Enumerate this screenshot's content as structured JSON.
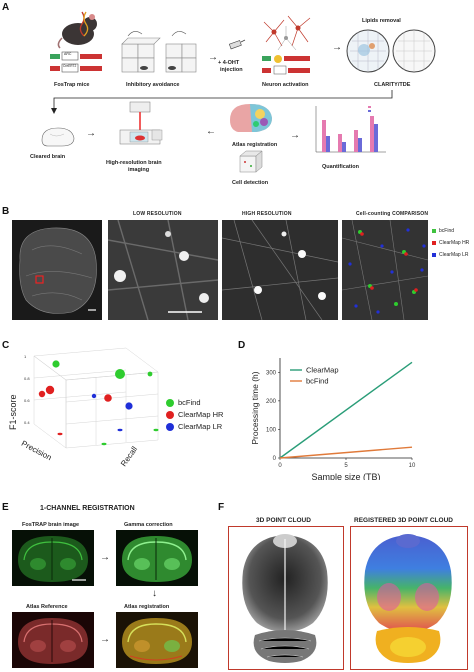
{
  "panelA": {
    "letter": "A",
    "fostrap": "FosTrap mice",
    "gene1": "ARC",
    "gene2": "CreERT2",
    "avoidance": "Inhibitory avoidance",
    "injection_line1": "+ 4-OHT",
    "injection_line2": "injection",
    "neuron": "Neuron activation",
    "lipids": "Lipids removal",
    "clarity": "CLARITY/TDE",
    "cleared": "Cleared brain",
    "imaging_line1": "High-resolution brain",
    "imaging_line2": "imaging",
    "atlas": "Atlas registration",
    "detection": "Cell detection",
    "quant": "Quantification"
  },
  "panelB": {
    "letter": "B",
    "low": "LOW RESOLUTION",
    "high": "HIGH RESOLUTION",
    "comparison": "Cell-counting COMPARISON",
    "legend": [
      {
        "label": "bcFind",
        "color": "#3fc23f"
      },
      {
        "label": "ClearMap HR",
        "color": "#e02020"
      },
      {
        "label": "ClearMap LR",
        "color": "#2230d8"
      }
    ]
  },
  "panelC": {
    "letter": "C",
    "ylabel": "F1-score",
    "xlabel": "Precision",
    "zlabel": "Recall",
    "legend": [
      {
        "label": "bcFind",
        "color": "#2ecc2e"
      },
      {
        "label": "ClearMap HR",
        "color": "#e02020"
      },
      {
        "label": "ClearMap LR",
        "color": "#1f2fd8"
      }
    ]
  },
  "chart_data": {
    "type": "line",
    "xlabel": "Sample size (TB)",
    "ylabel": "Processing time (h)",
    "xlim": [
      0,
      10
    ],
    "ylim": [
      0,
      350
    ],
    "xticks": [
      0,
      5,
      10
    ],
    "yticks": [
      0,
      100,
      200,
      300
    ],
    "series": [
      {
        "name": "ClearMap",
        "color": "#2a9d78",
        "x": [
          0,
          10
        ],
        "y": [
          0,
          335
        ]
      },
      {
        "name": "bcFind",
        "color": "#e07a3a",
        "x": [
          0,
          10
        ],
        "y": [
          0,
          38
        ]
      }
    ]
  },
  "panelD": {
    "letter": "D"
  },
  "panelE": {
    "letter": "E",
    "title": "1-CHANNEL REGISTRATION",
    "fostrap": "FosTRAP brain image",
    "gamma": "Gamma correction",
    "atlas_ref": "Atlas Reference",
    "atlas_reg": "Atlas registration"
  },
  "panelF": {
    "letter": "F",
    "cloud": "3D POINT CLOUD",
    "registered": "REGISTERED 3D POINT CLOUD"
  }
}
